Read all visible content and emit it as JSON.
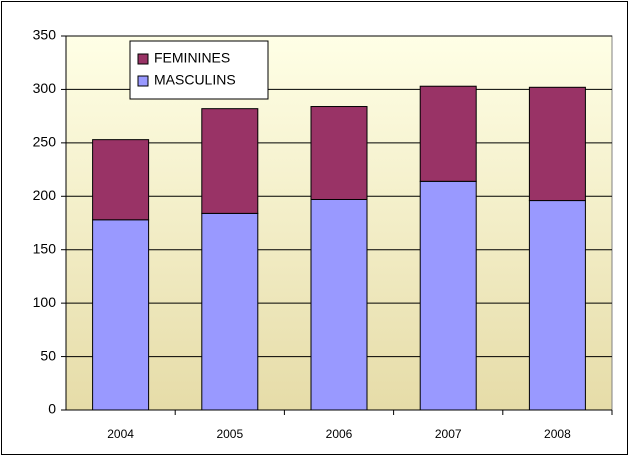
{
  "chart_data": {
    "type": "stacked-bar",
    "categories": [
      "2004",
      "2005",
      "2006",
      "2007",
      "2008"
    ],
    "series": [
      {
        "name": "MASCULINS",
        "color": "#9999ff",
        "values": [
          178,
          184,
          197,
          214,
          196
        ]
      },
      {
        "name": "FEMININES",
        "color": "#993366",
        "values": [
          75,
          98,
          87,
          89,
          106
        ]
      }
    ],
    "ylim": [
      0,
      350
    ],
    "yticks": [
      0,
      50,
      100,
      150,
      200,
      250,
      300,
      350
    ],
    "grid": true,
    "legend": "top-left"
  }
}
